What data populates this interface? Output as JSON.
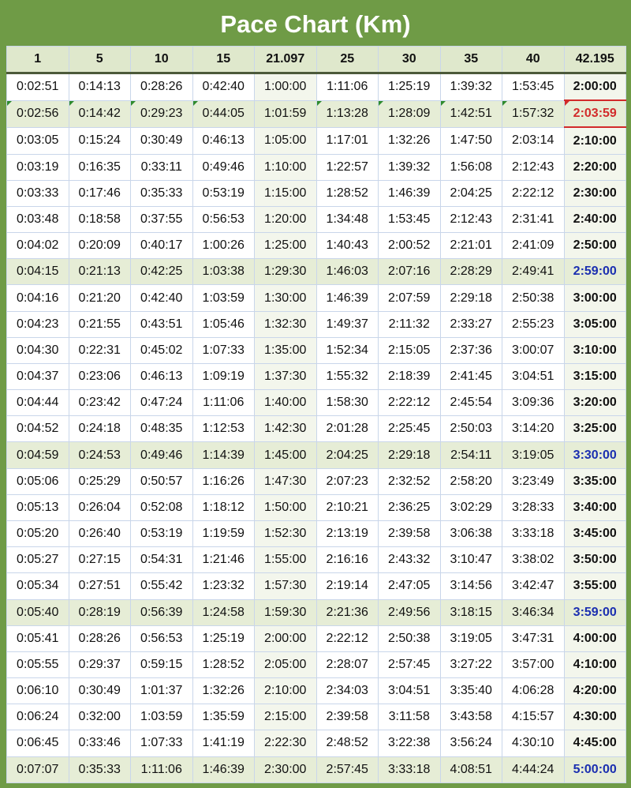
{
  "title": "Pace Chart (Km)",
  "headers": [
    "1",
    "5",
    "10",
    "15",
    "21.097",
    "25",
    "30",
    "35",
    "40",
    "42.195"
  ],
  "rows": [
    [
      "0:02:51",
      "0:14:13",
      "0:28:26",
      "0:42:40",
      "1:00:00",
      "1:11:06",
      "1:25:19",
      "1:39:32",
      "1:53:45",
      "2:00:00"
    ],
    [
      "0:02:56",
      "0:14:42",
      "0:29:23",
      "0:44:05",
      "1:01:59",
      "1:13:28",
      "1:28:09",
      "1:42:51",
      "1:57:32",
      "2:03:59"
    ],
    [
      "0:03:05",
      "0:15:24",
      "0:30:49",
      "0:46:13",
      "1:05:00",
      "1:17:01",
      "1:32:26",
      "1:47:50",
      "2:03:14",
      "2:10:00"
    ],
    [
      "0:03:19",
      "0:16:35",
      "0:33:11",
      "0:49:46",
      "1:10:00",
      "1:22:57",
      "1:39:32",
      "1:56:08",
      "2:12:43",
      "2:20:00"
    ],
    [
      "0:03:33",
      "0:17:46",
      "0:35:33",
      "0:53:19",
      "1:15:00",
      "1:28:52",
      "1:46:39",
      "2:04:25",
      "2:22:12",
      "2:30:00"
    ],
    [
      "0:03:48",
      "0:18:58",
      "0:37:55",
      "0:56:53",
      "1:20:00",
      "1:34:48",
      "1:53:45",
      "2:12:43",
      "2:31:41",
      "2:40:00"
    ],
    [
      "0:04:02",
      "0:20:09",
      "0:40:17",
      "1:00:26",
      "1:25:00",
      "1:40:43",
      "2:00:52",
      "2:21:01",
      "2:41:09",
      "2:50:00"
    ],
    [
      "0:04:15",
      "0:21:13",
      "0:42:25",
      "1:03:38",
      "1:29:30",
      "1:46:03",
      "2:07:16",
      "2:28:29",
      "2:49:41",
      "2:59:00"
    ],
    [
      "0:04:16",
      "0:21:20",
      "0:42:40",
      "1:03:59",
      "1:30:00",
      "1:46:39",
      "2:07:59",
      "2:29:18",
      "2:50:38",
      "3:00:00"
    ],
    [
      "0:04:23",
      "0:21:55",
      "0:43:51",
      "1:05:46",
      "1:32:30",
      "1:49:37",
      "2:11:32",
      "2:33:27",
      "2:55:23",
      "3:05:00"
    ],
    [
      "0:04:30",
      "0:22:31",
      "0:45:02",
      "1:07:33",
      "1:35:00",
      "1:52:34",
      "2:15:05",
      "2:37:36",
      "3:00:07",
      "3:10:00"
    ],
    [
      "0:04:37",
      "0:23:06",
      "0:46:13",
      "1:09:19",
      "1:37:30",
      "1:55:32",
      "2:18:39",
      "2:41:45",
      "3:04:51",
      "3:15:00"
    ],
    [
      "0:04:44",
      "0:23:42",
      "0:47:24",
      "1:11:06",
      "1:40:00",
      "1:58:30",
      "2:22:12",
      "2:45:54",
      "3:09:36",
      "3:20:00"
    ],
    [
      "0:04:52",
      "0:24:18",
      "0:48:35",
      "1:12:53",
      "1:42:30",
      "2:01:28",
      "2:25:45",
      "2:50:03",
      "3:14:20",
      "3:25:00"
    ],
    [
      "0:04:59",
      "0:24:53",
      "0:49:46",
      "1:14:39",
      "1:45:00",
      "2:04:25",
      "2:29:18",
      "2:54:11",
      "3:19:05",
      "3:30:00"
    ],
    [
      "0:05:06",
      "0:25:29",
      "0:50:57",
      "1:16:26",
      "1:47:30",
      "2:07:23",
      "2:32:52",
      "2:58:20",
      "3:23:49",
      "3:35:00"
    ],
    [
      "0:05:13",
      "0:26:04",
      "0:52:08",
      "1:18:12",
      "1:50:00",
      "2:10:21",
      "2:36:25",
      "3:02:29",
      "3:28:33",
      "3:40:00"
    ],
    [
      "0:05:20",
      "0:26:40",
      "0:53:19",
      "1:19:59",
      "1:52:30",
      "2:13:19",
      "2:39:58",
      "3:06:38",
      "3:33:18",
      "3:45:00"
    ],
    [
      "0:05:27",
      "0:27:15",
      "0:54:31",
      "1:21:46",
      "1:55:00",
      "2:16:16",
      "2:43:32",
      "3:10:47",
      "3:38:02",
      "3:50:00"
    ],
    [
      "0:05:34",
      "0:27:51",
      "0:55:42",
      "1:23:32",
      "1:57:30",
      "2:19:14",
      "2:47:05",
      "3:14:56",
      "3:42:47",
      "3:55:00"
    ],
    [
      "0:05:40",
      "0:28:19",
      "0:56:39",
      "1:24:58",
      "1:59:30",
      "2:21:36",
      "2:49:56",
      "3:18:15",
      "3:46:34",
      "3:59:00"
    ],
    [
      "0:05:41",
      "0:28:26",
      "0:56:53",
      "1:25:19",
      "2:00:00",
      "2:22:12",
      "2:50:38",
      "3:19:05",
      "3:47:31",
      "4:00:00"
    ],
    [
      "0:05:55",
      "0:29:37",
      "0:59:15",
      "1:28:52",
      "2:05:00",
      "2:28:07",
      "2:57:45",
      "3:27:22",
      "3:57:00",
      "4:10:00"
    ],
    [
      "0:06:10",
      "0:30:49",
      "1:01:37",
      "1:32:26",
      "2:10:00",
      "2:34:03",
      "3:04:51",
      "3:35:40",
      "4:06:28",
      "4:20:00"
    ],
    [
      "0:06:24",
      "0:32:00",
      "1:03:59",
      "1:35:59",
      "2:15:00",
      "2:39:58",
      "3:11:58",
      "3:43:58",
      "4:15:57",
      "4:30:00"
    ],
    [
      "0:06:45",
      "0:33:46",
      "1:07:33",
      "1:41:19",
      "2:22:30",
      "2:48:52",
      "3:22:38",
      "3:56:24",
      "4:30:10",
      "4:45:00"
    ],
    [
      "0:07:07",
      "0:35:33",
      "1:11:06",
      "1:46:39",
      "2:30:00",
      "2:57:45",
      "3:33:18",
      "4:08:51",
      "4:44:24",
      "5:00:00"
    ]
  ],
  "highlight_rows": [
    1,
    7,
    14,
    20,
    26
  ],
  "blue_goal_rows": [
    7,
    14,
    20,
    26
  ],
  "red_goal_rows": [
    1
  ],
  "colors": {
    "header_green": "#6f9b46",
    "header_row_bg": "#dfe8cc",
    "highlight_row_bg": "#e6edd6",
    "goal_blue": "#1b2fb0",
    "goal_red": "#d22a2a"
  }
}
